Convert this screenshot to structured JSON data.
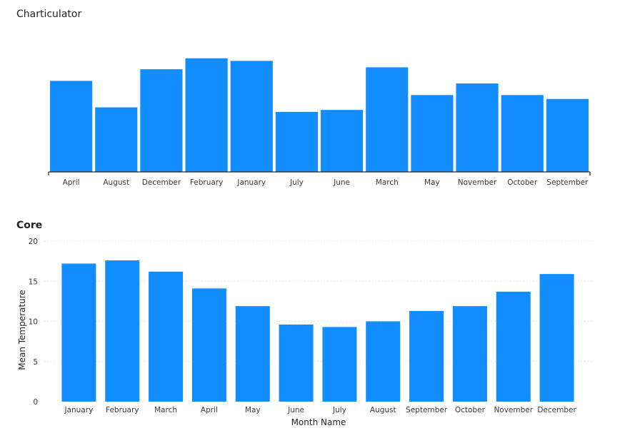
{
  "charticulator": {
    "title": "Charticulator"
  },
  "core": {
    "title": "Core",
    "xlabel": "Month Name",
    "ylabel": "Mean Temperature"
  },
  "colors": {
    "bar": "#118DFF",
    "axis": "#252423",
    "grid": "#E1DFDD",
    "tick": "#605E5C"
  },
  "chart_data": [
    {
      "type": "bar",
      "title": "Charticulator",
      "categories": [
        "April",
        "August",
        "December",
        "February",
        "January",
        "July",
        "June",
        "March",
        "May",
        "November",
        "October",
        "September"
      ],
      "values": [
        14.1,
        10.0,
        15.9,
        17.6,
        17.2,
        9.3,
        9.6,
        16.2,
        11.9,
        13.7,
        11.9,
        11.3
      ],
      "ylim": [
        0,
        20
      ],
      "y_axis_shown": false,
      "grid": false
    },
    {
      "type": "bar",
      "title": "Core",
      "categories": [
        "January",
        "February",
        "March",
        "April",
        "May",
        "June",
        "July",
        "August",
        "September",
        "October",
        "November",
        "December"
      ],
      "values": [
        17.2,
        17.6,
        16.2,
        14.1,
        11.9,
        9.6,
        9.3,
        10.0,
        11.3,
        11.9,
        13.7,
        15.9
      ],
      "xlabel": "Month Name",
      "ylabel": "Mean Temperature",
      "ylim": [
        0,
        20
      ],
      "yticks": [
        0,
        5,
        10,
        15,
        20
      ],
      "grid": true
    }
  ]
}
